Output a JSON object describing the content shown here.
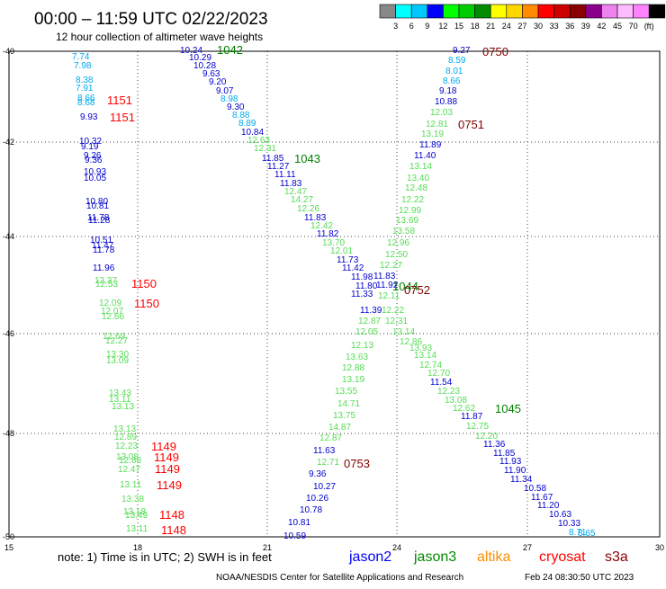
{
  "header": {
    "title": "00:00 – 11:59 UTC 02/22/2023",
    "subtitle": "12 hour collection of altimeter wave heights"
  },
  "color_scale": {
    "colors": [
      "#888888",
      "#00ffff",
      "#00c8ff",
      "#0000ff",
      "#00ff00",
      "#00cd00",
      "#008b00",
      "#ffff00",
      "#ffd700",
      "#ff8c00",
      "#ff0000",
      "#cd0000",
      "#8b0000",
      "#8b008b",
      "#ee82ee",
      "#ffbbff",
      "#ff82ff",
      "#000000"
    ],
    "ticks": [
      "3",
      "6",
      "9",
      "12",
      "15",
      "18",
      "21",
      "24",
      "27",
      "30",
      "33",
      "36",
      "39",
      "42",
      "45",
      "70",
      "(ft)"
    ]
  },
  "axes": {
    "lat_labels": [
      "-40",
      "-42",
      "-44",
      "-46",
      "-48",
      "-50"
    ],
    "lon_labels": [
      "15",
      "18",
      "21",
      "24",
      "27",
      "30"
    ]
  },
  "track_labels": [
    {
      "text": "1042",
      "color": "#008000"
    },
    {
      "text": "1043",
      "color": "#008000"
    },
    {
      "text": "1044",
      "color": "#008000"
    },
    {
      "text": "1045",
      "color": "#008000"
    },
    {
      "text": "0750",
      "color": "#800000"
    },
    {
      "text": "0751",
      "color": "#800000"
    },
    {
      "text": "0752",
      "color": "#800000"
    },
    {
      "text": "0753",
      "color": "#800000"
    },
    {
      "text": "1151",
      "color": "#ff0000"
    },
    {
      "text": "1151",
      "color": "#ff0000"
    },
    {
      "text": "1150",
      "color": "#ff0000"
    },
    {
      "text": "1150",
      "color": "#ff0000"
    },
    {
      "text": "1149",
      "color": "#ff0000"
    },
    {
      "text": "1149",
      "color": "#ff0000"
    },
    {
      "text": "1149",
      "color": "#ff0000"
    },
    {
      "text": "1149",
      "color": "#ff0000"
    },
    {
      "text": "1148",
      "color": "#ff0000"
    },
    {
      "text": "1148",
      "color": "#ff0000"
    }
  ],
  "wave_heights": [
    {
      "value": "10.24",
      "color": "#0000cd"
    },
    {
      "value": "10.29",
      "color": "#0000cd"
    },
    {
      "value": "10.28",
      "color": "#0000cd"
    },
    {
      "value": "9.63",
      "color": "#0000cd"
    },
    {
      "value": "9.20",
      "color": "#0000cd"
    },
    {
      "value": "9.07",
      "color": "#0000cd"
    },
    {
      "value": "8.98",
      "color": "#00aaee"
    },
    {
      "value": "9.30",
      "color": "#0000cd"
    },
    {
      "value": "8.88",
      "color": "#00aaee"
    },
    {
      "value": "8.89",
      "color": "#00aaee"
    },
    {
      "value": "10.84",
      "color": "#0000cd"
    },
    {
      "value": "12.63",
      "color": "#55dd55"
    },
    {
      "value": "12.31",
      "color": "#55dd55"
    },
    {
      "value": "11.85",
      "color": "#0000cd"
    },
    {
      "value": "11.27",
      "color": "#0000cd"
    },
    {
      "value": "11.11",
      "color": "#0000cd"
    },
    {
      "value": "11.83",
      "color": "#0000cd"
    },
    {
      "value": "12.47",
      "color": "#55dd55"
    },
    {
      "value": "14.27",
      "color": "#55dd55"
    },
    {
      "value": "12.26",
      "color": "#55dd55"
    },
    {
      "value": "11.83",
      "color": "#0000cd"
    },
    {
      "value": "12.42",
      "color": "#55dd55"
    },
    {
      "value": "11.82",
      "color": "#0000cd"
    },
    {
      "value": "13.70",
      "color": "#55dd55"
    },
    {
      "value": "12.01",
      "color": "#55dd55"
    },
    {
      "value": "11.73",
      "color": "#0000cd"
    },
    {
      "value": "11.42",
      "color": "#0000cd"
    },
    {
      "value": "11.98",
      "color": "#0000cd"
    },
    {
      "value": "11.80",
      "color": "#0000cd"
    },
    {
      "value": "11.33",
      "color": "#0000cd"
    },
    {
      "value": "11.39",
      "color": "#0000cd"
    },
    {
      "value": "12.87",
      "color": "#55dd55"
    },
    {
      "value": "12.05",
      "color": "#55dd55"
    },
    {
      "value": "12.13",
      "color": "#55dd55"
    },
    {
      "value": "13.63",
      "color": "#55dd55"
    },
    {
      "value": "12.88",
      "color": "#55dd55"
    },
    {
      "value": "13.19",
      "color": "#55dd55"
    },
    {
      "value": "13.55",
      "color": "#55dd55"
    },
    {
      "value": "14.71",
      "color": "#55dd55"
    },
    {
      "value": "13.75",
      "color": "#55dd55"
    },
    {
      "value": "14.87",
      "color": "#55dd55"
    },
    {
      "value": "12.87",
      "color": "#55dd55"
    },
    {
      "value": "11.63",
      "color": "#0000cd"
    },
    {
      "value": "12.71",
      "color": "#55dd55"
    },
    {
      "value": "9.36",
      "color": "#0000cd"
    },
    {
      "value": "10.27",
      "color": "#0000cd"
    },
    {
      "value": "10.26",
      "color": "#0000cd"
    },
    {
      "value": "10.78",
      "color": "#0000cd"
    },
    {
      "value": "10.81",
      "color": "#0000cd"
    },
    {
      "value": "10.59",
      "color": "#0000cd"
    },
    {
      "value": "9.27",
      "color": "#0000cd"
    },
    {
      "value": "8.59",
      "color": "#00aaee"
    },
    {
      "value": "8.01",
      "color": "#00aaee"
    },
    {
      "value": "8.66",
      "color": "#00aaee"
    },
    {
      "value": "9.18",
      "color": "#0000cd"
    },
    {
      "value": "10.88",
      "color": "#0000cd"
    },
    {
      "value": "12.03",
      "color": "#55dd55"
    },
    {
      "value": "12.81",
      "color": "#55dd55"
    },
    {
      "value": "13.19",
      "color": "#55dd55"
    },
    {
      "value": "11.89",
      "color": "#0000cd"
    },
    {
      "value": "11.40",
      "color": "#0000cd"
    },
    {
      "value": "13.14",
      "color": "#55dd55"
    },
    {
      "value": "13.40",
      "color": "#55dd55"
    },
    {
      "value": "12.48",
      "color": "#55dd55"
    },
    {
      "value": "12.22",
      "color": "#55dd55"
    },
    {
      "value": "12.99",
      "color": "#55dd55"
    },
    {
      "value": "13.69",
      "color": "#55dd55"
    },
    {
      "value": "13.58",
      "color": "#55dd55"
    },
    {
      "value": "12.96",
      "color": "#55dd55"
    },
    {
      "value": "12.50",
      "color": "#55dd55"
    },
    {
      "value": "12.27",
      "color": "#55dd55"
    },
    {
      "value": "11.83",
      "color": "#0000cd"
    },
    {
      "value": "11.92",
      "color": "#0000cd"
    },
    {
      "value": "12.11",
      "color": "#55dd55"
    },
    {
      "value": "12.22",
      "color": "#55dd55"
    },
    {
      "value": "12.31",
      "color": "#55dd55"
    },
    {
      "value": "13.14",
      "color": "#55dd55"
    },
    {
      "value": "12.86",
      "color": "#55dd55"
    },
    {
      "value": "13.93",
      "color": "#55dd55"
    },
    {
      "value": "13.14",
      "color": "#55dd55"
    },
    {
      "value": "12.74",
      "color": "#55dd55"
    },
    {
      "value": "12.70",
      "color": "#55dd55"
    },
    {
      "value": "11.54",
      "color": "#0000cd"
    },
    {
      "value": "12.23",
      "color": "#55dd55"
    },
    {
      "value": "13.08",
      "color": "#55dd55"
    },
    {
      "value": "12.62",
      "color": "#55dd55"
    },
    {
      "value": "11.87",
      "color": "#0000cd"
    },
    {
      "value": "12.75",
      "color": "#55dd55"
    },
    {
      "value": "12.20",
      "color": "#55dd55"
    },
    {
      "value": "11.36",
      "color": "#0000cd"
    },
    {
      "value": "11.85",
      "color": "#0000cd"
    },
    {
      "value": "11.93",
      "color": "#0000cd"
    },
    {
      "value": "11.90",
      "color": "#0000cd"
    },
    {
      "value": "11.34",
      "color": "#0000cd"
    },
    {
      "value": "10.58",
      "color": "#0000cd"
    },
    {
      "value": "11.67",
      "color": "#0000cd"
    },
    {
      "value": "11.20",
      "color": "#0000cd"
    },
    {
      "value": "10.63",
      "color": "#0000cd"
    },
    {
      "value": "10.33",
      "color": "#0000cd"
    },
    {
      "value": "8.71",
      "color": "#00aaee"
    },
    {
      "value": "8.65",
      "color": "#00aaee"
    },
    {
      "value": "7.74",
      "color": "#00aaee"
    },
    {
      "value": "7.98",
      "color": "#00aaee"
    },
    {
      "value": "8.38",
      "color": "#00aaee"
    },
    {
      "value": "7.91",
      "color": "#00aaee"
    },
    {
      "value": "8.66",
      "color": "#00aaee"
    },
    {
      "value": "8.68",
      "color": "#00aaee"
    },
    {
      "value": "9.93",
      "color": "#0000cd"
    },
    {
      "value": "10.32",
      "color": "#0000cd"
    },
    {
      "value": "9.19",
      "color": "#0000cd"
    },
    {
      "value": "9.26",
      "color": "#0000cd"
    },
    {
      "value": "9.36",
      "color": "#0000cd"
    },
    {
      "value": "10.93",
      "color": "#0000cd"
    },
    {
      "value": "10.05",
      "color": "#0000cd"
    },
    {
      "value": "10.80",
      "color": "#0000cd"
    },
    {
      "value": "10.81",
      "color": "#0000cd"
    },
    {
      "value": "11.78",
      "color": "#0000cd"
    },
    {
      "value": "11.28",
      "color": "#0000cd"
    },
    {
      "value": "10.51",
      "color": "#0000cd"
    },
    {
      "value": "11.47",
      "color": "#0000cd"
    },
    {
      "value": "11.78",
      "color": "#0000cd"
    },
    {
      "value": "11.96",
      "color": "#0000cd"
    },
    {
      "value": "12.37",
      "color": "#55dd55"
    },
    {
      "value": "12.53",
      "color": "#55dd55"
    },
    {
      "value": "12.09",
      "color": "#55dd55"
    },
    {
      "value": "12.07",
      "color": "#55dd55"
    },
    {
      "value": "12.66",
      "color": "#55dd55"
    },
    {
      "value": "12.69",
      "color": "#55dd55"
    },
    {
      "value": "12.27",
      "color": "#55dd55"
    },
    {
      "value": "13.30",
      "color": "#55dd55"
    },
    {
      "value": "13.09",
      "color": "#55dd55"
    },
    {
      "value": "13.43",
      "color": "#55dd55"
    },
    {
      "value": "13.11",
      "color": "#55dd55"
    },
    {
      "value": "13.13",
      "color": "#55dd55"
    },
    {
      "value": "13.13",
      "color": "#55dd55"
    },
    {
      "value": "12.89",
      "color": "#55dd55"
    },
    {
      "value": "12.23",
      "color": "#55dd55"
    },
    {
      "value": "13.08",
      "color": "#55dd55"
    },
    {
      "value": "12.88",
      "color": "#55dd55"
    },
    {
      "value": "12.47",
      "color": "#55dd55"
    },
    {
      "value": "13.11",
      "color": "#55dd55"
    },
    {
      "value": "13.38",
      "color": "#55dd55"
    },
    {
      "value": "13.18",
      "color": "#55dd55"
    },
    {
      "value": "13.49",
      "color": "#55dd55"
    },
    {
      "value": "13.11",
      "color": "#55dd55"
    }
  ],
  "footer": {
    "note": "note:  1) Time is in UTC; 2) SWH is in feet",
    "satellites": [
      {
        "name": "jason2",
        "color": "#0000ee"
      },
      {
        "name": "jason3",
        "color": "#008b00"
      },
      {
        "name": "altika",
        "color": "#ff8c00"
      },
      {
        "name": "cryosat",
        "color": "#ff0000"
      },
      {
        "name": "s3a",
        "color": "#8b0000"
      }
    ],
    "credit": "NOAA/NESDIS Center for Satellite Applications and Research",
    "timestamp": "Feb 24 08:30:50 UTC 2023"
  }
}
